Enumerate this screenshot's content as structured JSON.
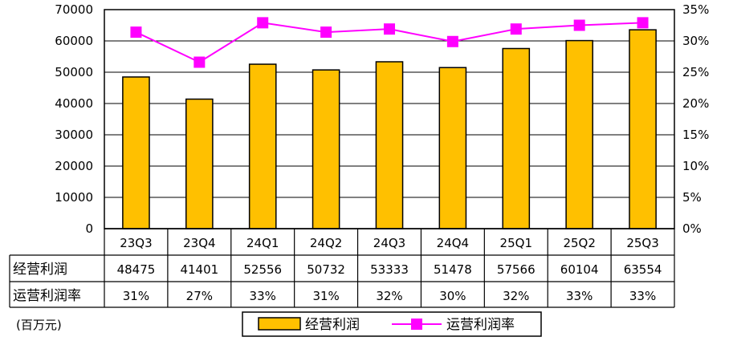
{
  "chart_data": {
    "type": "bar+line",
    "categories": [
      "23Q3",
      "23Q4",
      "24Q1",
      "24Q2",
      "24Q3",
      "24Q4",
      "25Q1",
      "25Q2",
      "25Q3"
    ],
    "series": [
      {
        "name": "经营利润",
        "type": "bar",
        "axis": "left",
        "color": "#FFC000",
        "values": [
          48475,
          41401,
          52556,
          50732,
          53333,
          51478,
          57566,
          60104,
          63554
        ]
      },
      {
        "name": "运营利润率",
        "type": "line",
        "axis": "right",
        "color": "#FF00FF",
        "values": [
          31.4,
          26.6,
          32.9,
          31.4,
          31.9,
          29.9,
          31.9,
          32.5,
          32.9
        ]
      }
    ],
    "left_axis": {
      "min": 0,
      "max": 70000,
      "step": 10000,
      "ticks": [
        "0",
        "10000",
        "20000",
        "30000",
        "40000",
        "50000",
        "60000",
        "70000"
      ]
    },
    "right_axis": {
      "min": 0,
      "max": 35,
      "step": 5,
      "ticks": [
        "0%",
        "5%",
        "10%",
        "15%",
        "20%",
        "25%",
        "30%",
        "35%"
      ]
    },
    "grid": true,
    "data_table": {
      "rows": [
        {
          "label": "经营利润",
          "values": [
            "48475",
            "41401",
            "52556",
            "50732",
            "53333",
            "51478",
            "57566",
            "60104",
            "63554"
          ]
        },
        {
          "label": "运营利润率",
          "values": [
            "31%",
            "27%",
            "33%",
            "31%",
            "32%",
            "30%",
            "32%",
            "33%",
            "33%"
          ]
        }
      ]
    },
    "unit_label": "(百万元)",
    "legend": {
      "placement": "bottom",
      "items": [
        "经营利润",
        "运营利润率"
      ]
    }
  }
}
